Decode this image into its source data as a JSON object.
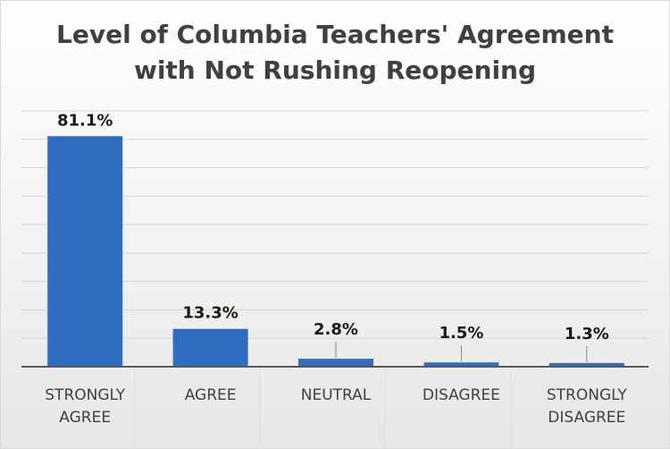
{
  "chart_data": {
    "type": "bar",
    "title": [
      "Level of Columbia Teachers' Agreement",
      "with Not Rushing Reopening"
    ],
    "categories": [
      [
        "STRONGLY",
        "AGREE"
      ],
      [
        "AGREE"
      ],
      [
        "NEUTRAL"
      ],
      [
        "DISAGREE"
      ],
      [
        "STRONGLY",
        "DISAGREE"
      ]
    ],
    "values": [
      81.1,
      13.3,
      2.8,
      1.5,
      1.3
    ],
    "data_labels": [
      "81.1%",
      "13.3%",
      "2.8%",
      "1.5%",
      "1.3%"
    ],
    "ylim": [
      0,
      90
    ],
    "grid": true,
    "y_axis_visible": false,
    "colors": {
      "bar": "#2e6dc0",
      "grid": "#d6d6d6",
      "axis": "#595959",
      "title": "#404040",
      "label": "#1a1a1a",
      "category": "#404040"
    }
  }
}
